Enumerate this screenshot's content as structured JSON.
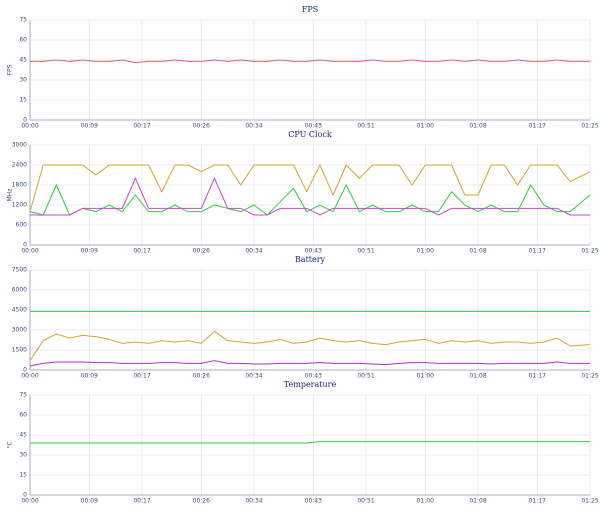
{
  "chart_data": [
    {
      "type": "line",
      "title": "FPS",
      "y_label": "FPS",
      "x": [
        0,
        2,
        4,
        6,
        8,
        10,
        12,
        14,
        16,
        18,
        20,
        22,
        24,
        26,
        28,
        30,
        32,
        34,
        36,
        38,
        40,
        42,
        44,
        46,
        48,
        50,
        52,
        54,
        56,
        58,
        60,
        62,
        64,
        66,
        68,
        70,
        72,
        74,
        76,
        78,
        80,
        82,
        85
      ],
      "xlim": [
        0,
        85
      ],
      "xticks": [
        {
          "value": 0,
          "label": "00:00"
        },
        {
          "value": 9,
          "label": "00:09"
        },
        {
          "value": 17,
          "label": "00:17"
        },
        {
          "value": 26,
          "label": "00:26"
        },
        {
          "value": 34,
          "label": "00:34"
        },
        {
          "value": 43,
          "label": "00:43"
        },
        {
          "value": 51,
          "label": "00:51"
        },
        {
          "value": 60,
          "label": "01:00"
        },
        {
          "value": 68,
          "label": "01:08"
        },
        {
          "value": 77,
          "label": "01:17"
        },
        {
          "value": 85,
          "label": "01:25"
        }
      ],
      "ylim": [
        0,
        75
      ],
      "yticks": [
        0,
        15,
        30,
        45,
        60,
        75
      ],
      "grid": true,
      "series": [
        {
          "color": "#e05a6a",
          "values": [
            44,
            44,
            45,
            44,
            45,
            44,
            44,
            45,
            43,
            44,
            44,
            45,
            44,
            44,
            45,
            44,
            45,
            44,
            44,
            45,
            44,
            44,
            45,
            44,
            44,
            44,
            45,
            44,
            44,
            45,
            44,
            44,
            45,
            44,
            45,
            44,
            44,
            45,
            44,
            44,
            45,
            44,
            44
          ]
        }
      ]
    },
    {
      "type": "line",
      "title": "CPU Clock",
      "y_label": "MHz",
      "x": [
        0,
        2,
        4,
        6,
        8,
        10,
        12,
        14,
        16,
        18,
        20,
        22,
        24,
        26,
        28,
        30,
        32,
        34,
        36,
        38,
        40,
        42,
        44,
        46,
        48,
        50,
        52,
        54,
        56,
        58,
        60,
        62,
        64,
        66,
        68,
        70,
        72,
        74,
        76,
        78,
        80,
        82,
        85
      ],
      "xlim": [
        0,
        85
      ],
      "xticks": [
        {
          "value": 0,
          "label": "00:00"
        },
        {
          "value": 9,
          "label": "00:09"
        },
        {
          "value": 17,
          "label": "00:17"
        },
        {
          "value": 26,
          "label": "00:26"
        },
        {
          "value": 34,
          "label": "00:34"
        },
        {
          "value": 43,
          "label": "00:43"
        },
        {
          "value": 51,
          "label": "00:51"
        },
        {
          "value": 60,
          "label": "01:00"
        },
        {
          "value": 68,
          "label": "01:08"
        },
        {
          "value": 77,
          "label": "01:17"
        },
        {
          "value": 85,
          "label": "01:25"
        }
      ],
      "ylim": [
        0,
        3000
      ],
      "yticks": [
        0,
        600,
        1200,
        1800,
        2400,
        3000
      ],
      "grid": true,
      "series": [
        {
          "color": "#d4a32a",
          "values": [
            1000,
            2400,
            2400,
            2400,
            2400,
            2100,
            2400,
            2400,
            2400,
            2400,
            1600,
            2400,
            2400,
            2200,
            2400,
            2400,
            1800,
            2400,
            2400,
            2400,
            2400,
            1600,
            2400,
            1500,
            2400,
            2000,
            2400,
            2400,
            2400,
            1800,
            2400,
            2400,
            2400,
            1500,
            1500,
            2400,
            2400,
            1800,
            2400,
            2400,
            2400,
            1900,
            2200
          ]
        },
        {
          "color": "#2ecc40",
          "values": [
            1000,
            900,
            1800,
            900,
            1100,
            1000,
            1200,
            1000,
            1500,
            1000,
            1000,
            1200,
            1000,
            1000,
            1200,
            1100,
            1000,
            1200,
            900,
            1300,
            1700,
            1000,
            1200,
            1000,
            1800,
            1000,
            1200,
            1000,
            1000,
            1200,
            1000,
            1000,
            1600,
            1200,
            1000,
            1200,
            1000,
            1000,
            1800,
            1200,
            1000,
            1000,
            1500
          ]
        },
        {
          "color": "#cc44cc",
          "values": [
            900,
            900,
            900,
            900,
            1100,
            1100,
            1100,
            1100,
            2000,
            1100,
            1100,
            1100,
            1100,
            1100,
            2000,
            1100,
            1100,
            900,
            900,
            1100,
            1100,
            1100,
            900,
            1100,
            1100,
            1100,
            1100,
            1100,
            1100,
            1100,
            1100,
            900,
            1100,
            1100,
            1100,
            1100,
            1100,
            1100,
            1100,
            1100,
            1100,
            900,
            900
          ]
        }
      ]
    },
    {
      "type": "line",
      "title": "Battery",
      "x": [
        0,
        2,
        4,
        6,
        8,
        10,
        12,
        14,
        16,
        18,
        20,
        22,
        24,
        26,
        28,
        30,
        32,
        34,
        36,
        38,
        40,
        42,
        44,
        46,
        48,
        50,
        52,
        54,
        56,
        58,
        60,
        62,
        64,
        66,
        68,
        70,
        72,
        74,
        76,
        78,
        80,
        82,
        85
      ],
      "xlim": [
        0,
        85
      ],
      "xticks": [
        {
          "value": 0,
          "label": "00:00"
        },
        {
          "value": 9,
          "label": "00:09"
        },
        {
          "value": 17,
          "label": "00:17"
        },
        {
          "value": 26,
          "label": "00:26"
        },
        {
          "value": 34,
          "label": "00:34"
        },
        {
          "value": 43,
          "label": "00:43"
        },
        {
          "value": 51,
          "label": "00:51"
        },
        {
          "value": 60,
          "label": "01:00"
        },
        {
          "value": 68,
          "label": "01:08"
        },
        {
          "value": 77,
          "label": "01:17"
        },
        {
          "value": 85,
          "label": "01:25"
        }
      ],
      "ylim": [
        0,
        7500
      ],
      "yticks": [
        0,
        1500,
        3000,
        4500,
        6000,
        7500
      ],
      "grid": true,
      "series": [
        {
          "color": "#2ecc40",
          "values": [
            4400,
            4400,
            4400,
            4400,
            4400,
            4400,
            4400,
            4400,
            4400,
            4400,
            4400,
            4400,
            4400,
            4400,
            4400,
            4400,
            4400,
            4400,
            4400,
            4400,
            4400,
            4400,
            4400,
            4400,
            4400,
            4400,
            4400,
            4400,
            4400,
            4400,
            4400,
            4400,
            4400,
            4400,
            4400,
            4400,
            4400,
            4400,
            4400,
            4400,
            4400,
            4400,
            4400
          ]
        },
        {
          "color": "#d4a32a",
          "values": [
            700,
            2200,
            2700,
            2400,
            2600,
            2500,
            2300,
            2000,
            2100,
            2000,
            2200,
            2100,
            2200,
            2000,
            2900,
            2200,
            2100,
            2000,
            2100,
            2300,
            2000,
            2100,
            2400,
            2200,
            2100,
            2200,
            2000,
            1900,
            2100,
            2200,
            2300,
            2000,
            2200,
            2100,
            2200,
            2000,
            2100,
            2100,
            2000,
            2100,
            2400,
            1800,
            1900
          ]
        },
        {
          "color": "#aa33cc",
          "values": [
            300,
            500,
            600,
            600,
            600,
            550,
            550,
            500,
            500,
            500,
            550,
            550,
            500,
            500,
            700,
            500,
            500,
            450,
            450,
            500,
            500,
            500,
            550,
            500,
            500,
            500,
            450,
            400,
            500,
            550,
            550,
            500,
            500,
            500,
            500,
            450,
            500,
            500,
            500,
            500,
            600,
            500,
            500
          ]
        }
      ]
    },
    {
      "type": "line",
      "title": "Temperature",
      "y_label": "°C",
      "x": [
        0,
        2,
        4,
        6,
        8,
        10,
        12,
        14,
        16,
        18,
        20,
        22,
        24,
        26,
        28,
        30,
        32,
        34,
        36,
        38,
        40,
        42,
        44,
        46,
        48,
        50,
        52,
        54,
        56,
        58,
        60,
        62,
        64,
        66,
        68,
        70,
        72,
        74,
        76,
        78,
        80,
        82,
        85
      ],
      "xlim": [
        0,
        85
      ],
      "xticks": [
        {
          "value": 0,
          "label": "00:00"
        },
        {
          "value": 9,
          "label": "00:09"
        },
        {
          "value": 17,
          "label": "00:17"
        },
        {
          "value": 26,
          "label": "00:26"
        },
        {
          "value": 34,
          "label": "00:34"
        },
        {
          "value": 43,
          "label": "00:43"
        },
        {
          "value": 51,
          "label": "00:51"
        },
        {
          "value": 60,
          "label": "01:00"
        },
        {
          "value": 68,
          "label": "01:08"
        },
        {
          "value": 77,
          "label": "01:17"
        },
        {
          "value": 85,
          "label": "01:25"
        }
      ],
      "ylim": [
        0,
        75
      ],
      "yticks": [
        0,
        15,
        30,
        45,
        60,
        75
      ],
      "grid": true,
      "series": [
        {
          "color": "#2ecc40",
          "values": [
            39,
            39,
            39,
            39,
            39,
            39,
            39,
            39,
            39,
            39,
            39,
            39,
            39,
            39,
            39,
            39,
            39,
            39,
            39,
            39,
            39,
            39,
            40,
            40,
            40,
            40,
            40,
            40,
            40,
            40,
            40,
            40,
            40,
            40,
            40,
            40,
            40,
            40,
            40,
            40,
            40,
            40,
            40
          ]
        }
      ]
    }
  ]
}
